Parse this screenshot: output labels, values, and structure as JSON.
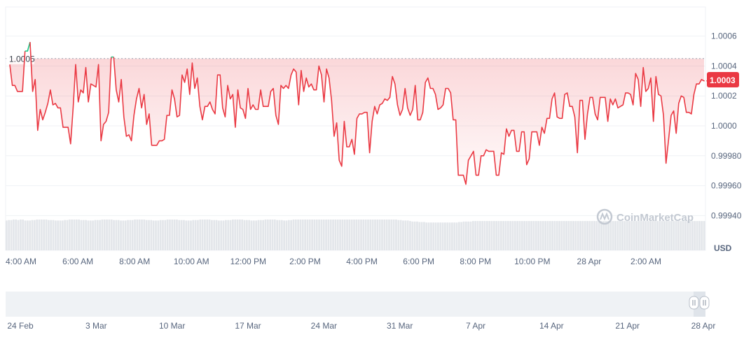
{
  "chart_data": {
    "type": "area",
    "unit": "USD",
    "yticks": [
      "1.0006",
      "1.0004",
      "1.0002",
      "1.0000",
      "0.99980",
      "0.99960",
      "0.99940"
    ],
    "ylim": [
      0.9993,
      1.0008
    ],
    "xticks": [
      "4:00 AM",
      "6:00 AM",
      "8:00 AM",
      "10:00 AM",
      "12:00 PM",
      "2:00 PM",
      "4:00 PM",
      "6:00 PM",
      "8:00 PM",
      "10:00 PM",
      "28 Apr",
      "2:00 AM"
    ],
    "navigator_ticks": [
      "24 Feb",
      "3 Mar",
      "10 Mar",
      "17 Mar",
      "24 Mar",
      "31 Mar",
      "7 Apr",
      "14 Apr",
      "21 Apr",
      "28 Apr"
    ],
    "reference_value": "1.0005",
    "current_price": "1.0003",
    "watermark": "CoinMarketCap",
    "colors": {
      "line": "#ea3943",
      "up": "#16c784",
      "area_top": "#ea3943",
      "volume": "#e3e6ea",
      "grid": "#eff2f5"
    },
    "series": [
      {
        "values": [
          1.00041,
          1.00027,
          1.00027,
          1.00023,
          1.00023,
          1.00023,
          1.0005,
          1.0005,
          1.00056,
          1.00023,
          1.00031,
          0.99997,
          1.00011,
          1.00004,
          1.00009,
          1.00015,
          1.00024,
          1.00014,
          1.00015,
          1.00012,
          1.00012,
          0.99999,
          0.99999,
          0.99999,
          0.99988,
          1.00012,
          1.00041,
          1.00016,
          1.00024,
          1.00022,
          1.00039,
          1.00016,
          1.00028,
          1.00027,
          1.00026,
          1.00041,
          0.9999,
          1.00001,
          1.00003,
          1.00009,
          1.00046,
          1.00046,
          1.00024,
          1.00016,
          1.00031,
          1.00006,
          0.99993,
          0.99994,
          0.9999,
          1.00007,
          1.00018,
          1.00025,
          1.00012,
          1.00021,
          1.00001,
          1.00008,
          0.99987,
          0.99987,
          0.99987,
          0.9999,
          0.9999,
          0.99991,
          1.00007,
          1.00007,
          1.00024,
          1.00018,
          1.00006,
          1.00007,
          1.00034,
          1.00029,
          1.00038,
          1.00021,
          1.00042,
          1.00025,
          1.00032,
          1.00013,
          1.00004,
          1.00013,
          1.00013,
          1.00016,
          1.00011,
          1.00008,
          1.00034,
          1.00034,
          1.00012,
          1.00006,
          1.00027,
          1.00018,
          1.00021,
          0.99999,
          1.00024,
          1.00012,
          1.00011,
          1.00005,
          1.00025,
          1.00011,
          1.00014,
          1.00011,
          1.00011,
          1.00024,
          1.00013,
          1.00013,
          1.00013,
          1.00023,
          1.00025,
          1.00007,
          1.00001,
          1.00027,
          1.00025,
          1.00027,
          1.00025,
          1.00034,
          1.00038,
          1.00036,
          1.00014,
          1.00037,
          1.00023,
          1.00032,
          1.00026,
          1.00028,
          1.00024,
          1.00024,
          1.0004,
          1.00034,
          1.00016,
          1.00038,
          1.00032,
          1.00017,
          0.99993,
          1.00002,
          0.99977,
          0.99973,
          1.00003,
          0.99986,
          0.99986,
          0.99991,
          0.99981,
          1.00005,
          1.00008,
          1.00008,
          1.00009,
          1.00009,
          0.99982,
          1.00003,
          1.00013,
          1.00008,
          1.00014,
          1.00015,
          1.00018,
          1.00017,
          1.00019,
          1.00033,
          1.00028,
          1.00014,
          1.00007,
          1.00011,
          1.00025,
          1.00012,
          1.00007,
          1.00011,
          1.00027,
          1.00004,
          1.00004,
          1.00009,
          1.00029,
          1.00032,
          1.00025,
          1.00025,
          1.00021,
          1.00011,
          1.00012,
          1.00014,
          1.00025,
          1.00025,
          1.00022,
          1.00004,
          1.00004,
          0.99967,
          0.99967,
          0.99967,
          0.99961,
          0.99977,
          0.9998,
          0.99983,
          0.99967,
          0.99967,
          0.9998,
          0.9998,
          0.99984,
          0.99983,
          0.99983,
          0.99983,
          0.99967,
          0.99967,
          0.99982,
          0.99981,
          0.99998,
          0.99993,
          0.99997,
          0.99997,
          0.99983,
          0.99983,
          0.99996,
          0.99996,
          0.99974,
          0.99978,
          0.99996,
          0.99996,
          0.99996,
          0.99987,
          0.99999,
          0.99995,
          1.00005,
          1.00005,
          1.00018,
          1.00022,
          1.00006,
          1.00005,
          1.00005,
          1.00021,
          1.00022,
          1.00013,
          1.00013,
          1.00006,
          0.99982,
          1.00017,
          1.00017,
          0.99991,
          1.00008,
          1.00019,
          1.00019,
          1.00008,
          1.00004,
          1.00019,
          1.00019,
          1.00019,
          1.00003,
          1.00018,
          1.00014,
          1.00018,
          1.00012,
          1.00013,
          1.00014,
          1.00022,
          1.00022,
          1.00021,
          1.00014,
          1.00035,
          1.00031,
          1.00013,
          1.00039,
          1.00023,
          1.00025,
          1.00032,
          1.00003,
          1.00033,
          1.00021,
          1.0002,
          1.00007,
          0.99975,
          0.99991,
          1.00007,
          1.0001,
          0.99995,
          1.00015,
          1.0002,
          1.00019,
          1.00009,
          1.00009,
          1.00008,
          1.00021,
          1.00028,
          1.00028,
          1.00031,
          1.0003
        ],
        "color": "#ea3943"
      }
    ],
    "volume": [
      60,
      61,
      61,
      62,
      62,
      61,
      62,
      62,
      60,
      60,
      60,
      61,
      61,
      62,
      62,
      62,
      62,
      62,
      61,
      61,
      61,
      60,
      60,
      60,
      60,
      61,
      61,
      62,
      62,
      62,
      62,
      62,
      61,
      61,
      61,
      60,
      60,
      60,
      61,
      61,
      61,
      62,
      62,
      62,
      62,
      62,
      61,
      61,
      61,
      60,
      60,
      60,
      61,
      61,
      61,
      62,
      62,
      62,
      62,
      62,
      61,
      61,
      61,
      60,
      60,
      60,
      61,
      61,
      61,
      62,
      62,
      62,
      62,
      62,
      61,
      61,
      61,
      60,
      60,
      60,
      61,
      61,
      61,
      62,
      62,
      62,
      62,
      62,
      61,
      61,
      61,
      60,
      60,
      60,
      61,
      61,
      61,
      62,
      62,
      62,
      62,
      62,
      61,
      61,
      61,
      60,
      60,
      60,
      61,
      61,
      61,
      62,
      62,
      62,
      62,
      62,
      61,
      61,
      61,
      60,
      60,
      61,
      61,
      62,
      62,
      62,
      62,
      62,
      62,
      62,
      62,
      62,
      62,
      62,
      62,
      62,
      62,
      62,
      62,
      62,
      62,
      62,
      62,
      62,
      62,
      62,
      62,
      62,
      62,
      62,
      62,
      62,
      62,
      62,
      62,
      62,
      62,
      62,
      62,
      62,
      62,
      62,
      62,
      62,
      62,
      62,
      62,
      62,
      61,
      61,
      60,
      60,
      60,
      59,
      58,
      58,
      58,
      57,
      57,
      57,
      56,
      56,
      56,
      56,
      56,
      56,
      56,
      56,
      56,
      56,
      56,
      56,
      56,
      56,
      57,
      57,
      58,
      58,
      58,
      58,
      59,
      59,
      59,
      59,
      59,
      59,
      59,
      59,
      59,
      59,
      59,
      59,
      59,
      59,
      59,
      59,
      59,
      59,
      59,
      59,
      59,
      59,
      59,
      59,
      59,
      59,
      59,
      59,
      59,
      59,
      59,
      59,
      59,
      59,
      59,
      59,
      59,
      59,
      59,
      59,
      59,
      59,
      59,
      59,
      59,
      59,
      59,
      59,
      59,
      59,
      59,
      59,
      59,
      59,
      59,
      59,
      59,
      59,
      59,
      59,
      59,
      59,
      59,
      59,
      59,
      59,
      59,
      59,
      59,
      59,
      59,
      59,
      59,
      59,
      59,
      59,
      59,
      59,
      59,
      59,
      59,
      59,
      59,
      59,
      59,
      59,
      59,
      59,
      59,
      59,
      59,
      59,
      59,
      59,
      59,
      59,
      59,
      59,
      59,
      59
    ]
  }
}
